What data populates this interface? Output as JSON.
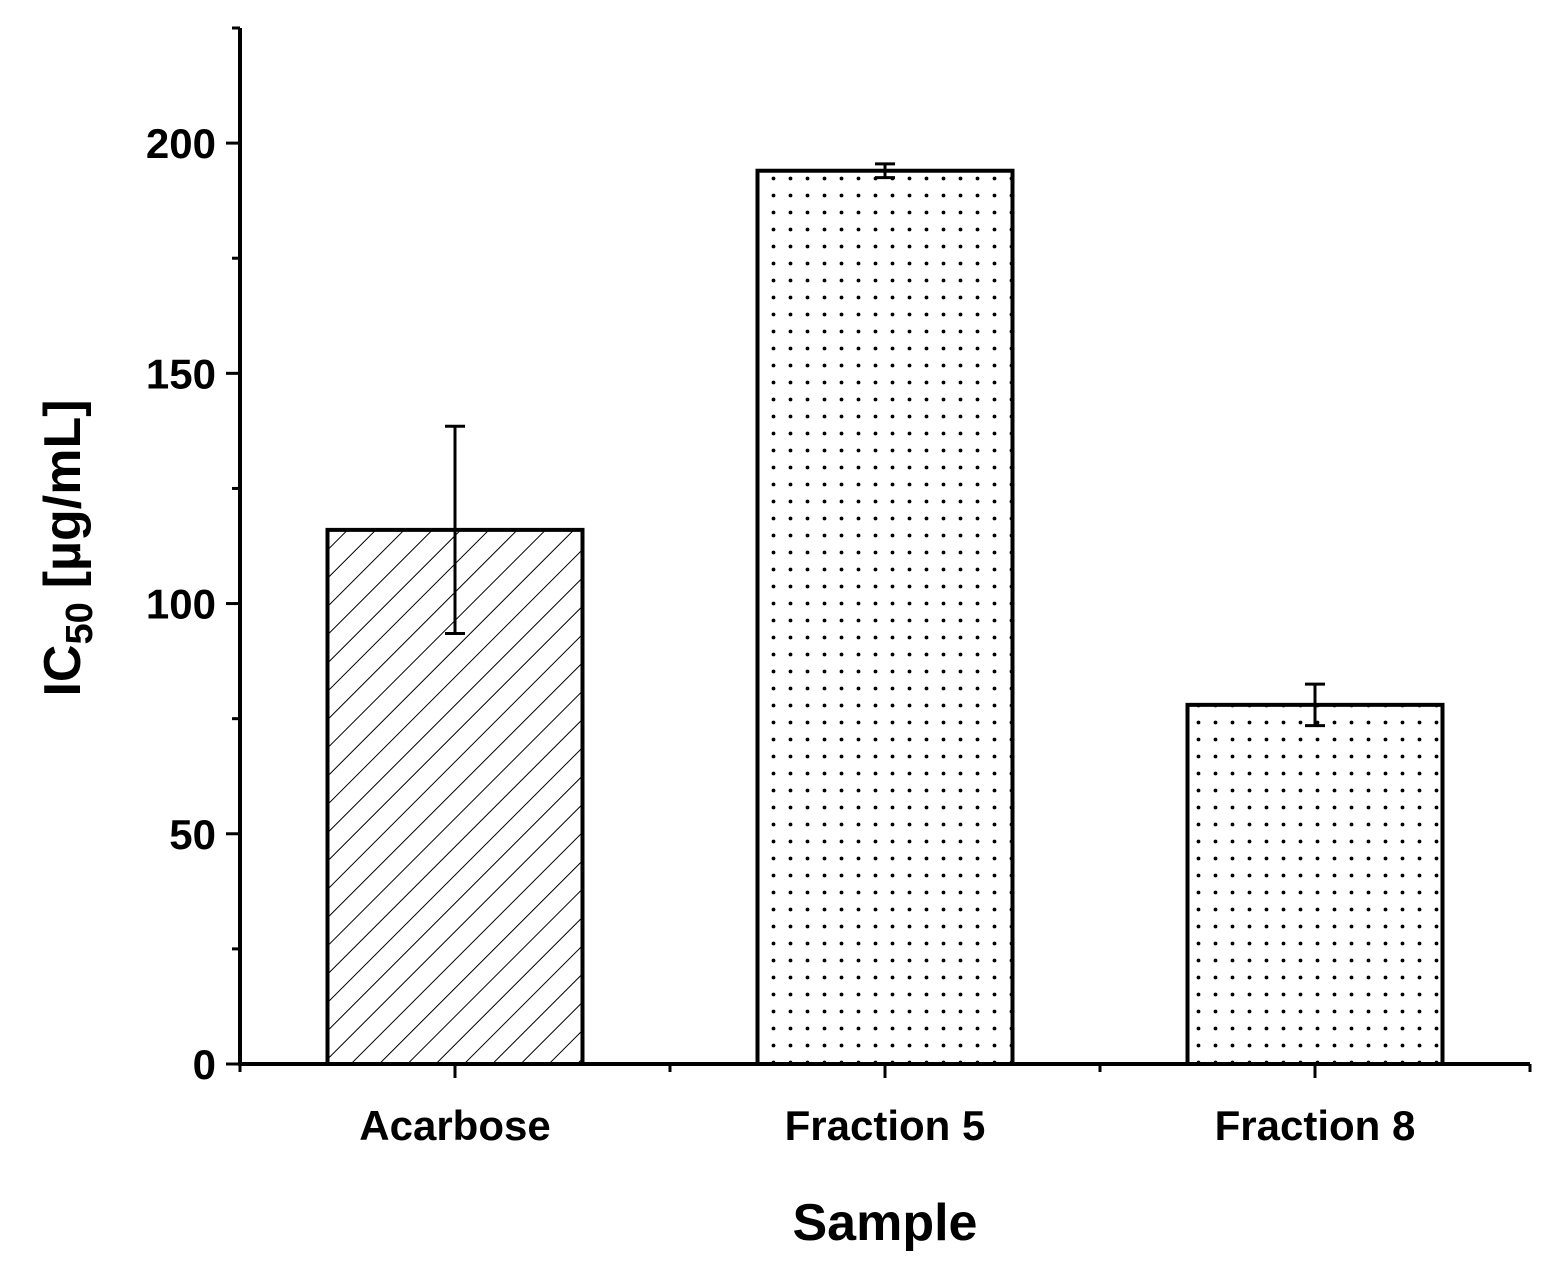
{
  "chart_data": {
    "type": "bar",
    "xlabel": "Sample",
    "ylabel": {
      "main": "IC",
      "subscript": "50",
      "unit": "[µg/mL]"
    },
    "categories": [
      "Acarbose",
      "Fraction 5",
      "Fraction 8"
    ],
    "values": [
      116,
      194,
      78
    ],
    "errors": [
      22.5,
      1.5,
      4.5
    ],
    "patterns": [
      "diagonal-hatch",
      "dots",
      "dots"
    ],
    "ylim": [
      0,
      225
    ],
    "yticks_major": [
      0,
      50,
      100,
      150,
      200
    ],
    "yticks_major_labels": [
      "0",
      "50",
      "100",
      "150",
      "200"
    ],
    "yticks_minor": [
      25,
      75,
      125,
      175,
      225
    ],
    "grid": false,
    "legend": "none",
    "colors": {
      "bar_fill": "#ffffff",
      "bar_stroke": "#000000",
      "pattern": "#000000"
    }
  }
}
